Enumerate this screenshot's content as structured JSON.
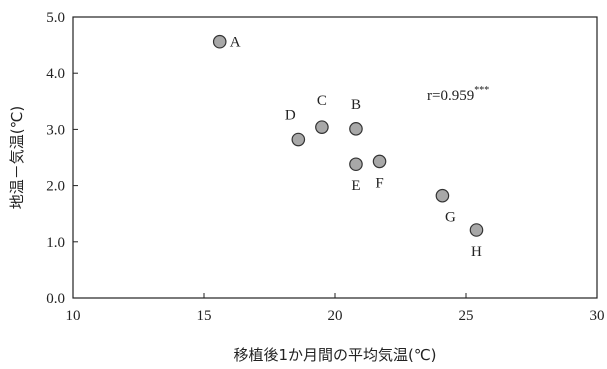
{
  "chart_data": {
    "type": "scatter",
    "title": "",
    "xlabel": "移植後1か月間の平均気温(℃)",
    "ylabel": "地温－気温(℃)",
    "xlim": [
      10,
      30
    ],
    "ylim": [
      0.0,
      5.0
    ],
    "xticks": [
      10,
      15,
      20,
      25,
      30
    ],
    "xtick_labels": [
      "10",
      "15",
      "20",
      "25",
      "30"
    ],
    "yticks": [
      0.0,
      1.0,
      2.0,
      3.0,
      4.0,
      5.0
    ],
    "ytick_labels": [
      "0.0",
      "1.0",
      "2.0",
      "3.0",
      "4.0",
      "5.0"
    ],
    "grid": false,
    "points": [
      {
        "label": "A",
        "x": 15.6,
        "y": 4.56
      },
      {
        "label": "B",
        "x": 20.8,
        "y": 3.01
      },
      {
        "label": "C",
        "x": 19.5,
        "y": 3.04
      },
      {
        "label": "D",
        "x": 18.6,
        "y": 2.82
      },
      {
        "label": "E",
        "x": 20.8,
        "y": 2.38
      },
      {
        "label": "F",
        "x": 21.7,
        "y": 2.43
      },
      {
        "label": "G",
        "x": 24.1,
        "y": 1.82
      },
      {
        "label": "H",
        "x": 25.4,
        "y": 1.21
      }
    ],
    "annotation": {
      "text": "r=0.959",
      "sup": "***"
    },
    "colors": {
      "marker_fill": "#a8a8a8",
      "marker_edge": "#333333",
      "axis": "#222222"
    }
  }
}
